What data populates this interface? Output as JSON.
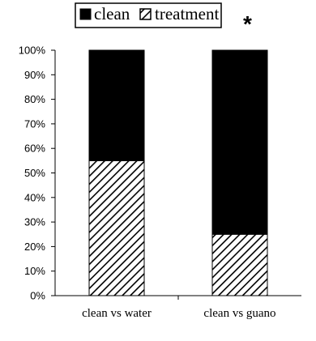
{
  "chart_data": {
    "type": "bar",
    "stacked": true,
    "percent": true,
    "title": "",
    "xlabel": "",
    "ylabel": "",
    "ylim": [
      0,
      100
    ],
    "yticks": [
      "0%",
      "10%",
      "20%",
      "30%",
      "40%",
      "50%",
      "60%",
      "70%",
      "80%",
      "90%",
      "100%"
    ],
    "categories": [
      "clean vs water",
      "clean vs guano"
    ],
    "series": [
      {
        "name": "treatment",
        "values": [
          55,
          25
        ],
        "fill": "hatched"
      },
      {
        "name": "clean",
        "values": [
          45,
          75
        ],
        "fill": "#000000"
      }
    ],
    "legend": {
      "position": "top",
      "entries": [
        "clean",
        "treatment"
      ]
    },
    "annotation": "*",
    "grid": false
  }
}
